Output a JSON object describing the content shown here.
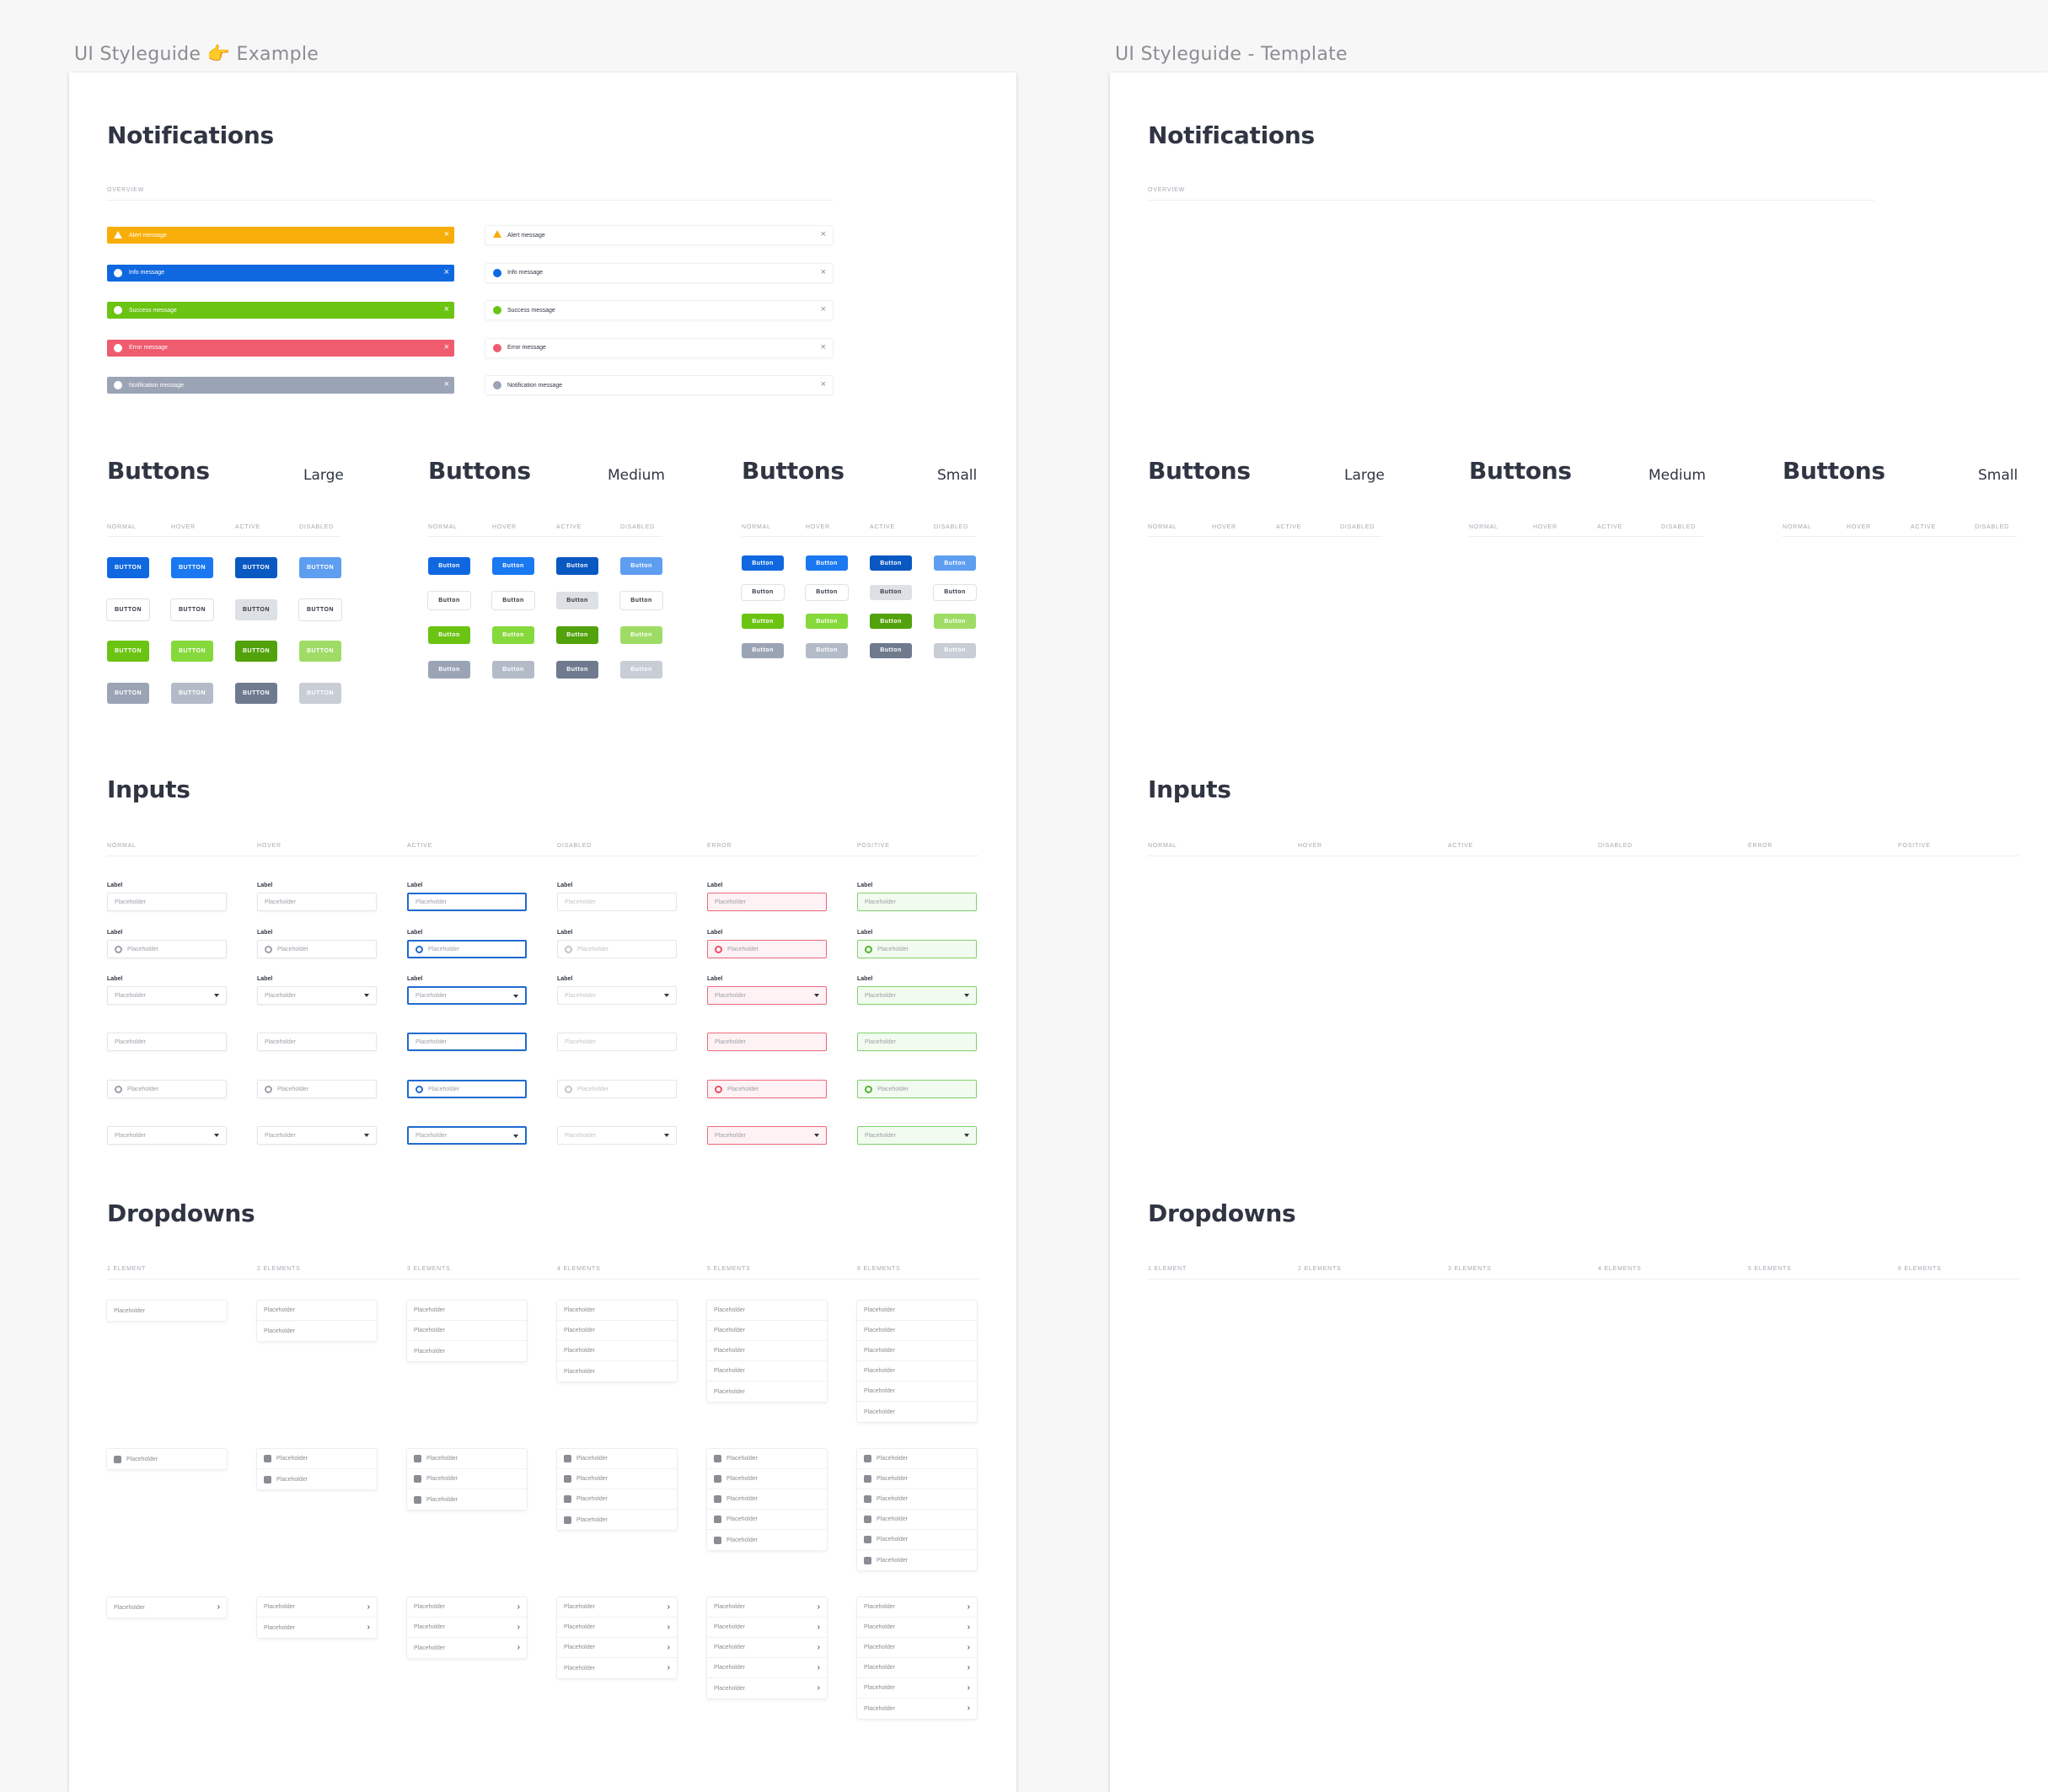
{
  "frames": {
    "example_title": "UI Styleguide 👉 Example",
    "template_title": "UI Styleguide - Template"
  },
  "sections": {
    "notifications": "Notifications",
    "buttons": "Buttons",
    "inputs": "Inputs",
    "dropdowns": "Dropdowns",
    "overview": "OVERVIEW",
    "sizes": [
      "Large",
      "Medium",
      "Small"
    ],
    "button_states": [
      "NORMAL",
      "HOVER",
      "ACTIVE",
      "DISABLED"
    ],
    "input_states": [
      "NORMAL",
      "HOVER",
      "ACTIVE",
      "DISABLED",
      "ERROR",
      "POSITIVE"
    ],
    "dropdown_counts": [
      "1 ELEMENT",
      "2 ELEMENTS",
      "3 ELEMENTS",
      "4 ELEMENTS",
      "5 ELEMENTS",
      "6 ELEMENTS"
    ]
  },
  "notifications": [
    {
      "text": "Alert message",
      "color": "#f9ad08",
      "icon": "alert-triangle-icon"
    },
    {
      "text": "Info message",
      "color": "#1068e0",
      "icon": "info-icon"
    },
    {
      "text": "Success message",
      "color": "#6bc312",
      "icon": "check-circle-icon"
    },
    {
      "text": "Error message",
      "color": "#ef5b6f",
      "icon": "error-circle-icon"
    },
    {
      "text": "Notification message",
      "color": "#9ba4b5",
      "icon": "notification-icon"
    }
  ],
  "close_glyph": "×",
  "buttons": {
    "large_label": "BUTTON",
    "label": "Button",
    "rows": [
      {
        "normal": "#1068e0",
        "hover": "#1a78f0",
        "active": "#0a58c2",
        "disabled": "#5e9ef0",
        "outline": false
      },
      {
        "normal": "outline",
        "hover": "outline",
        "active": "#dde0e5",
        "disabled": "outline",
        "outline": true
      },
      {
        "normal": "#6bc312",
        "hover": "#86d93a",
        "active": "#52a20b",
        "disabled": "#9fdc66",
        "outline": false
      },
      {
        "normal": "#9ba4b5",
        "hover": "#b4bbc8",
        "active": "#6f7a8f",
        "disabled": "#c8cdd6",
        "outline": false
      }
    ]
  },
  "inputs": {
    "label": "Label",
    "placeholder": "Placeholder"
  },
  "dropdowns": {
    "placeholder": "Placeholder",
    "chevron": "›"
  }
}
